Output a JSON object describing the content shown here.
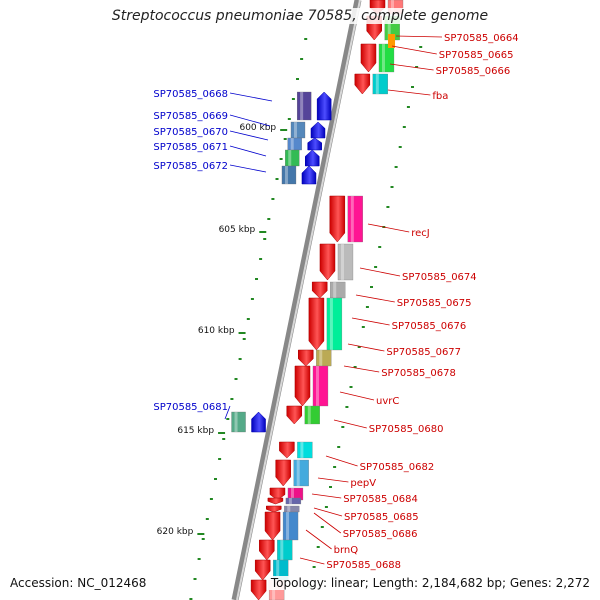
{
  "title": "Streptococcus pneumoniae 70585, complete genome",
  "accession": "Accession: NC_012468",
  "topology": "Topology: linear; Length: 2,184,682 bp; Genes: 2,272",
  "kbp_labels": [
    "600 kbp",
    "605 kbp",
    "610 kbp",
    "615 kbp",
    "620 kbp"
  ],
  "left_labels": [
    "SP70585_0668",
    "SP70585_0669",
    "SP70585_0670",
    "SP70585_0671",
    "SP70585_0672",
    "SP70585_0681"
  ],
  "right_labels": [
    "SP70585_0664",
    "SP70585_0665",
    "SP70585_0666",
    "fba",
    "recJ",
    "SP70585_0674",
    "SP70585_0675",
    "SP70585_0676",
    "SP70585_0677",
    "SP70585_0678",
    "uvrC",
    "SP70585_0680",
    "SP70585_0682",
    "pepV",
    "SP70585_0684",
    "SP70585_0685",
    "SP70585_0686",
    "brnQ",
    "SP70585_0688"
  ],
  "colors": {
    "forward_label": "#0000cc",
    "reverse_label": "#cc0000",
    "forward_arrow": "#0000ff",
    "reverse_arrow": "#ff0000",
    "backbone": "#888888",
    "tick": "#228822"
  }
}
